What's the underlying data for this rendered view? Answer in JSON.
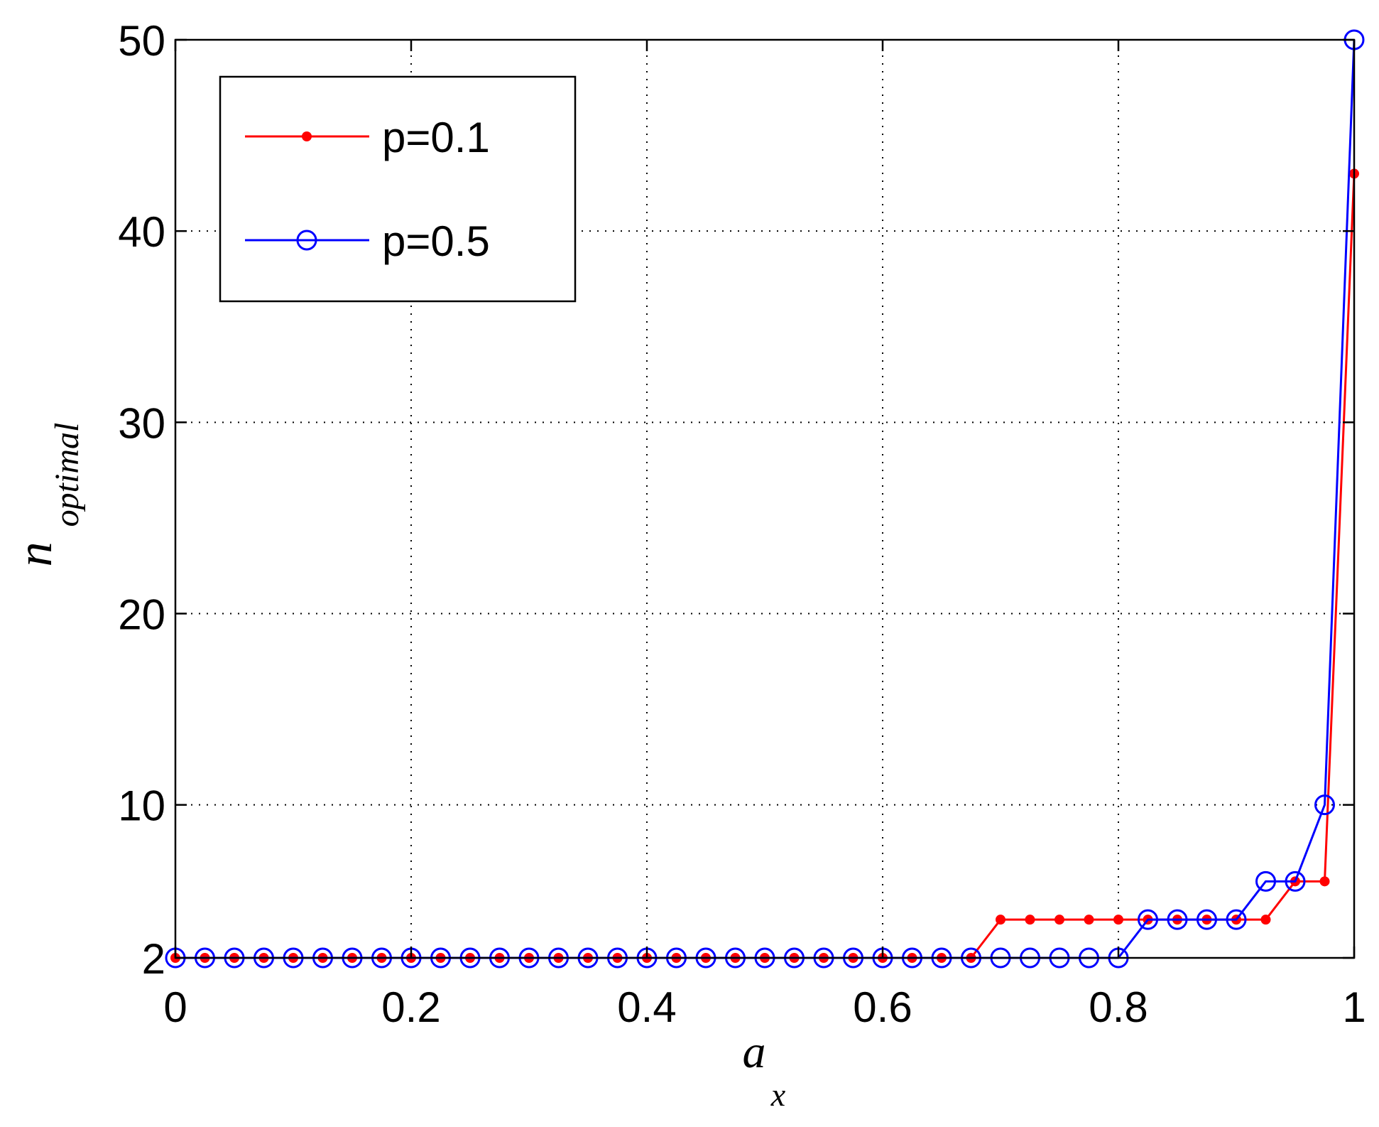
{
  "chart_data": {
    "type": "line",
    "xlabel": "a",
    "xlabel_sub": "x",
    "ylabel": "n",
    "ylabel_sub": "optimal",
    "xlim": [
      0,
      1
    ],
    "ylim": [
      2,
      50
    ],
    "xticks": [
      0,
      0.2,
      0.4,
      0.6,
      0.8,
      1
    ],
    "xtick_labels": [
      "0",
      "0.2",
      "0.4",
      "0.6",
      "0.8",
      "1"
    ],
    "yticks": [
      2,
      10,
      20,
      30,
      40,
      50
    ],
    "ytick_labels": [
      "2",
      "10",
      "20",
      "30",
      "40",
      "50"
    ],
    "grid": true,
    "legend_position": "top-left",
    "series": [
      {
        "name": "p=0.1",
        "color": "#ff0000",
        "marker": "dot",
        "x": [
          0,
          0.025,
          0.05,
          0.075,
          0.1,
          0.125,
          0.15,
          0.175,
          0.2,
          0.225,
          0.25,
          0.275,
          0.3,
          0.325,
          0.35,
          0.375,
          0.4,
          0.425,
          0.45,
          0.475,
          0.5,
          0.525,
          0.55,
          0.575,
          0.6,
          0.625,
          0.65,
          0.675,
          0.7,
          0.725,
          0.75,
          0.775,
          0.8,
          0.825,
          0.85,
          0.875,
          0.9,
          0.925,
          0.95,
          0.975,
          1.0
        ],
        "y": [
          2,
          2,
          2,
          2,
          2,
          2,
          2,
          2,
          2,
          2,
          2,
          2,
          2,
          2,
          2,
          2,
          2,
          2,
          2,
          2,
          2,
          2,
          2,
          2,
          2,
          2,
          2,
          2,
          4,
          4,
          4,
          4,
          4,
          4,
          4,
          4,
          4,
          4,
          6,
          6,
          43
        ]
      },
      {
        "name": "p=0.5",
        "color": "#0000ff",
        "marker": "circle",
        "x": [
          0,
          0.025,
          0.05,
          0.075,
          0.1,
          0.125,
          0.15,
          0.175,
          0.2,
          0.225,
          0.25,
          0.275,
          0.3,
          0.325,
          0.35,
          0.375,
          0.4,
          0.425,
          0.45,
          0.475,
          0.5,
          0.525,
          0.55,
          0.575,
          0.6,
          0.625,
          0.65,
          0.675,
          0.7,
          0.725,
          0.75,
          0.775,
          0.8,
          0.825,
          0.85,
          0.875,
          0.9,
          0.925,
          0.95,
          0.975,
          1.0
        ],
        "y": [
          2,
          2,
          2,
          2,
          2,
          2,
          2,
          2,
          2,
          2,
          2,
          2,
          2,
          2,
          2,
          2,
          2,
          2,
          2,
          2,
          2,
          2,
          2,
          2,
          2,
          2,
          2,
          2,
          2,
          2,
          2,
          2,
          2,
          4,
          4,
          4,
          4,
          6,
          6,
          10,
          50
        ]
      }
    ]
  }
}
